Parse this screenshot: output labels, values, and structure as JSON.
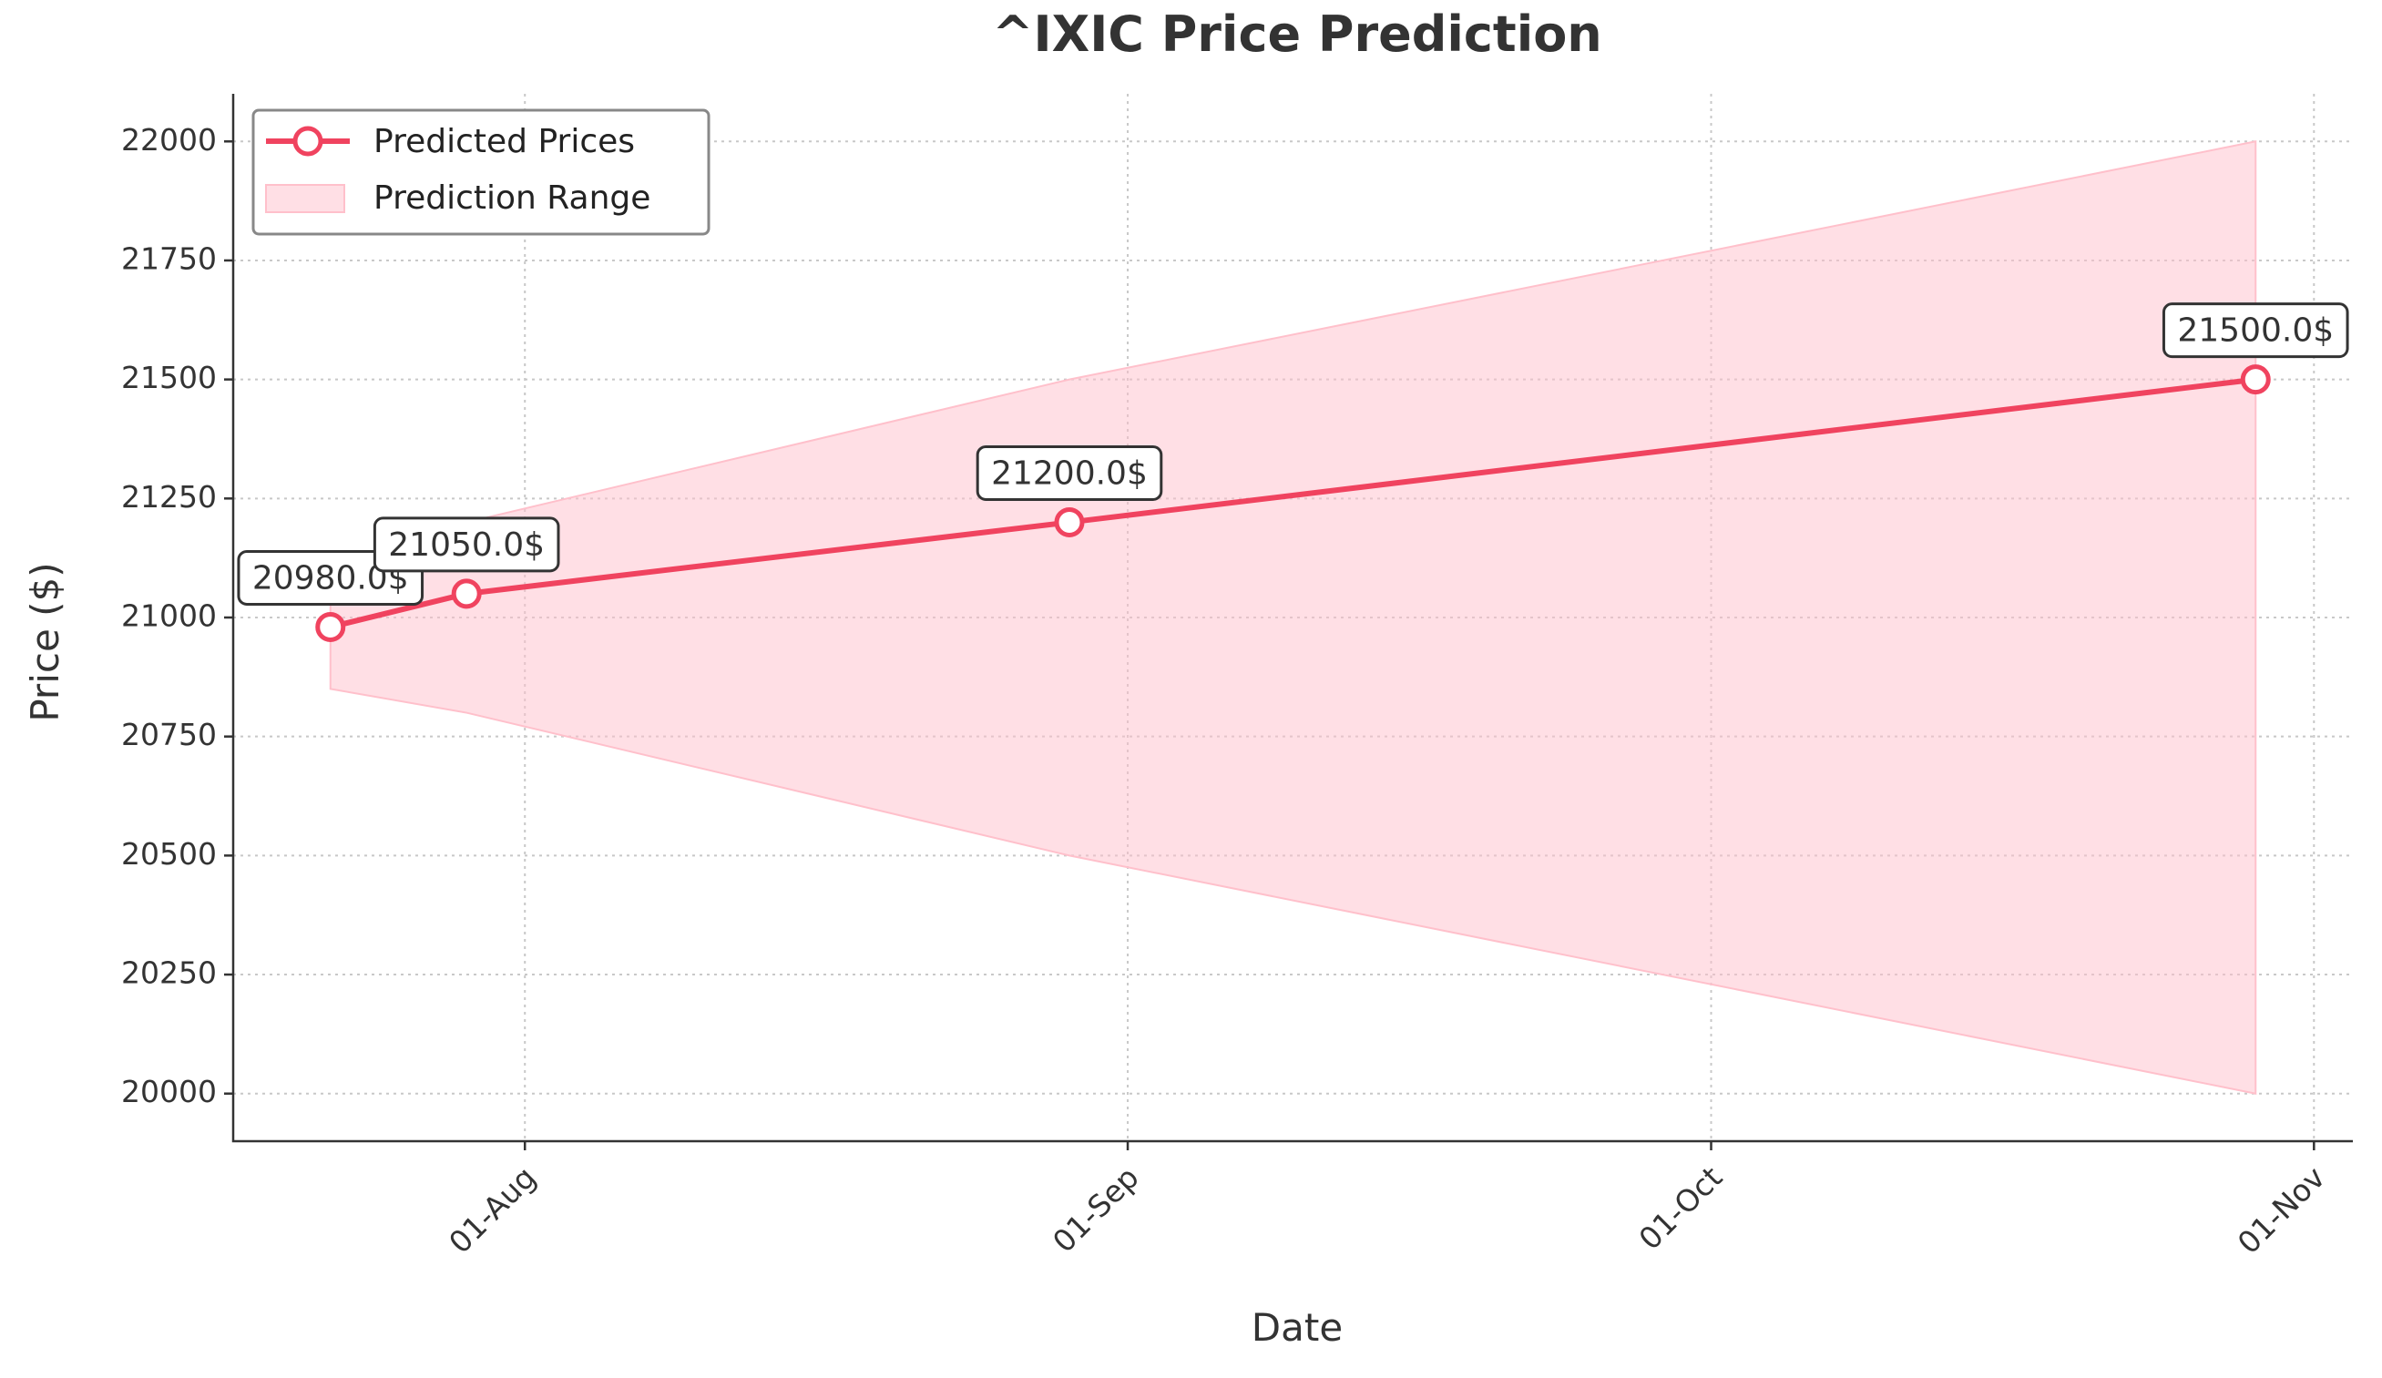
{
  "chart_data": {
    "type": "line",
    "title": "^IXIC Price Prediction",
    "xlabel": "Date",
    "ylabel": "Price ($)",
    "x": [
      "2024-07-22",
      "2024-07-29",
      "2024-08-29",
      "2024-10-29"
    ],
    "series": [
      {
        "name": "Predicted Prices",
        "values": [
          20980,
          21050,
          21200,
          21500
        ]
      }
    ],
    "range": {
      "name": "Prediction Range",
      "lower": [
        20850,
        20800,
        20500,
        20000
      ],
      "upper": [
        21100,
        21200,
        21500,
        22000
      ]
    },
    "annotations": [
      "20980.0$",
      "21050.0$",
      "21200.0$",
      "21500.0$"
    ],
    "xticks": [
      {
        "date": "2024-08-01",
        "label": "01-Aug"
      },
      {
        "date": "2024-09-01",
        "label": "01-Sep"
      },
      {
        "date": "2024-10-01",
        "label": "01-Oct"
      },
      {
        "date": "2024-11-01",
        "label": "01-Nov"
      }
    ],
    "yticks": [
      20000,
      20250,
      20500,
      20750,
      21000,
      21250,
      21500,
      21750,
      22000
    ],
    "ylim": [
      19900,
      22100
    ],
    "xlim": [
      "2024-07-17",
      "2024-11-03"
    ],
    "grid": true,
    "legend_position": "top-left",
    "colors": {
      "line": "#f0435f",
      "range": "#ffc0cb",
      "marker_face": "#ffffff"
    }
  }
}
